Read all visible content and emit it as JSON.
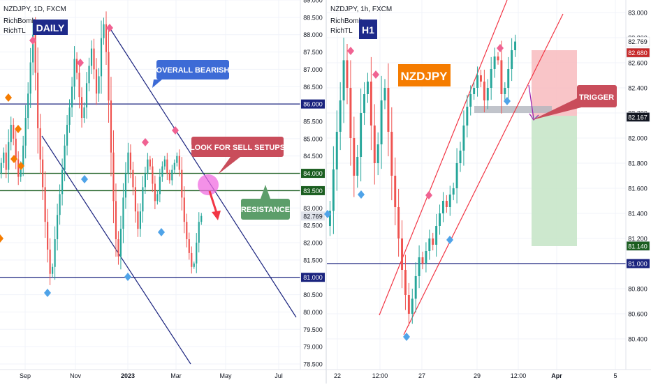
{
  "chart_data": [
    {
      "type": "candlestick",
      "symbol_line": "NZDJPY, 1D, FXCM",
      "indicators": [
        "RichBomb",
        "RichTL"
      ],
      "timeframe_badge": "DAILY",
      "x_ticks": [
        "Sep",
        "Nov",
        "2023",
        "Mar",
        "May",
        "Jul"
      ],
      "y_ticks": [
        "89.000",
        "88.500",
        "88.000",
        "87.500",
        "87.000",
        "86.500",
        "86.000",
        "85.500",
        "85.000",
        "84.500",
        "84.000",
        "83.500",
        "83.000",
        "82.500",
        "82.000",
        "81.500",
        "81.000",
        "80.500",
        "80.000",
        "79.500",
        "79.000",
        "78.500"
      ],
      "ylim": [
        78.5,
        89.0
      ],
      "levels": [
        {
          "value": 86.0,
          "label": "86.000",
          "color": "#1a237e"
        },
        {
          "value": 84.0,
          "label": "84.000",
          "color": "#1b5e20"
        },
        {
          "value": 83.5,
          "label": "83.500",
          "color": "#1b5e20"
        },
        {
          "value": 81.0,
          "label": "81.000",
          "color": "#1a237e"
        }
      ],
      "last_price": {
        "value": 82.769,
        "label": "82.769"
      },
      "annotations": {
        "bearish": "OVERALL BEARISH",
        "sell": "LOOK FOR SELL SETUPS",
        "resistance": "RESISTANCE"
      },
      "closes": [
        84.3,
        84.6,
        84.1,
        84.9,
        85.4,
        85.0,
        84.4,
        83.9,
        84.2,
        84.8,
        85.6,
        86.3,
        87.2,
        88.0,
        86.9,
        85.3,
        84.4,
        83.6,
        82.6,
        81.8,
        81.1,
        81.3,
        82.1,
        82.8,
        83.4,
        84.1,
        84.8,
        85.4,
        85.9,
        86.5,
        87.3,
        86.9,
        86.2,
        85.6,
        85.9,
        86.6,
        87.1,
        87.6,
        87.0,
        86.3,
        86.8,
        87.9,
        88.3,
        87.5,
        86.1,
        84.6,
        83.2,
        82.1,
        81.6,
        82.4,
        83.3,
        84.0,
        84.6,
        84.1,
        83.6,
        82.9,
        82.4,
        82.9,
        83.6,
        84.0,
        84.4,
        84.2,
        83.7,
        83.2,
        83.4,
        83.9,
        84.2,
        84.4,
        84.0,
        83.8,
        84.1,
        84.3,
        84.5,
        84.1,
        83.3,
        82.6,
        82.1,
        81.7,
        81.3,
        81.4,
        82.0,
        82.6,
        82.77
      ]
    },
    {
      "type": "candlestick",
      "symbol_line": "NZDJPY, 1h, FXCM",
      "indicators": [
        "RichBomb",
        "RichTL"
      ],
      "timeframe_badge": "H1",
      "x_ticks": [
        "22",
        "12:00",
        "27",
        "29",
        "12:00",
        "Apr",
        "5"
      ],
      "y_ticks": [
        "83.000",
        "82.800",
        "82.600",
        "82.400",
        "82.200",
        "82.000",
        "81.800",
        "81.600",
        "81.400",
        "81.200",
        "81.000",
        "80.800",
        "80.600",
        "80.400"
      ],
      "ylim": [
        80.2,
        83.1
      ],
      "levels": [
        {
          "value": 81.0,
          "label": "81.000",
          "color": "#1a237e"
        }
      ],
      "price_labels": [
        {
          "value": 82.769,
          "label": "82.769",
          "color": "#ffffff",
          "text_color": "#131722"
        },
        {
          "value": 82.68,
          "label": "82.680",
          "color": "#c62828",
          "text_color": "#ffffff"
        },
        {
          "value": 82.167,
          "label": "82.167",
          "color": "#131722",
          "text_color": "#ffffff"
        },
        {
          "value": 81.14,
          "label": "81.140",
          "color": "#1b5e20",
          "text_color": "#ffffff"
        }
      ],
      "position": {
        "entry": 82.167,
        "stop": 82.68,
        "target": 81.14,
        "side": "short"
      },
      "annotations": {
        "pair": "NZDJPY",
        "trigger": "TRIGGER"
      },
      "closes": [
        81.42,
        81.75,
        82.05,
        82.3,
        82.62,
        82.4,
        82.0,
        81.7,
        81.85,
        82.2,
        82.35,
        82.45,
        82.1,
        81.8,
        81.95,
        82.3,
        82.4,
        82.05,
        81.7,
        81.45,
        81.2,
        80.95,
        80.75,
        80.6,
        80.72,
        80.9,
        81.05,
        81.0,
        81.1,
        81.2,
        81.15,
        81.3,
        81.4,
        81.5,
        81.45,
        81.55,
        81.6,
        81.8,
        81.9,
        82.1,
        82.25,
        82.35,
        82.4,
        82.5,
        82.45,
        82.3,
        82.4,
        82.55,
        82.65,
        82.62,
        82.35,
        82.4,
        82.55,
        82.7,
        82.769
      ]
    }
  ]
}
